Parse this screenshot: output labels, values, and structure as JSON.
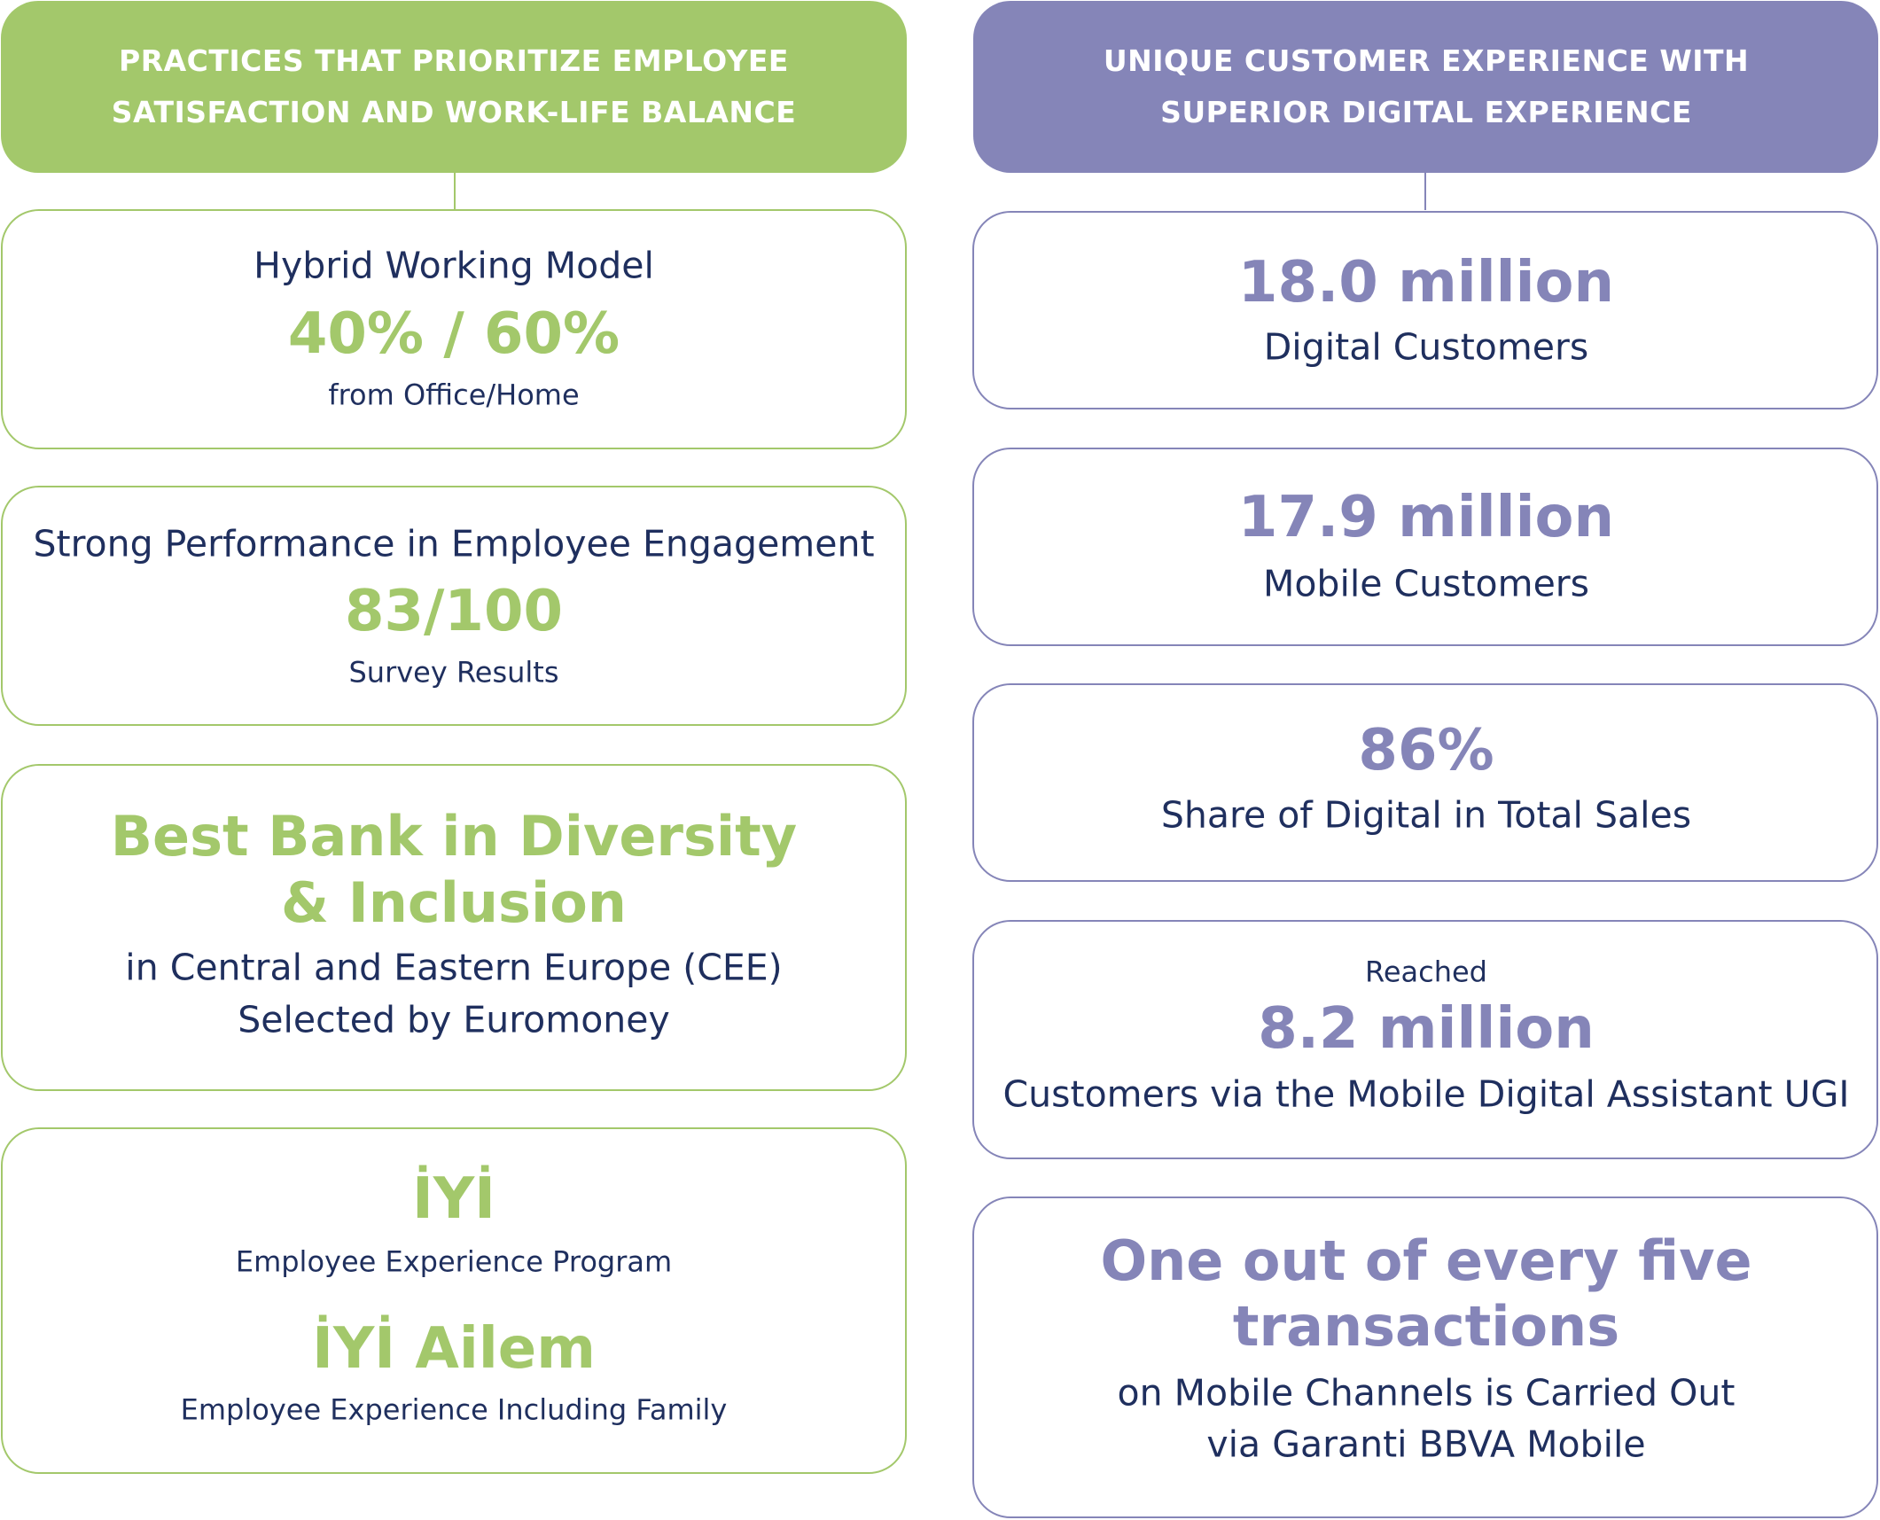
{
  "left": {
    "header": [
      "PRACTICES THAT PRIORITIZE EMPLOYEE",
      "SATISFACTION AND WORK-LIFE BALANCE"
    ],
    "cards": [
      [
        "Hybrid Working Model",
        "40% / 60%",
        "from Office/Home"
      ],
      [
        "Strong Performance in Employee Engagement",
        "83/100",
        "Survey Results"
      ],
      [
        "Best Bank in Diversity",
        "& Inclusion",
        "in Central and Eastern Europe (CEE)",
        "Selected by Euromoney"
      ],
      [
        "İYİ",
        "Employee Experience Program",
        "İYİ Ailem",
        "Employee Experience Including Family"
      ]
    ]
  },
  "right": {
    "header": [
      "UNIQUE CUSTOMER EXPERIENCE WITH",
      "SUPERIOR DIGITAL EXPERIENCE"
    ],
    "cards": [
      [
        "18.0 million",
        "Digital Customers"
      ],
      [
        "17.9 million",
        "Mobile Customers"
      ],
      [
        "86%",
        "Share of Digital in Total Sales"
      ],
      [
        "Reached",
        "8.2 million",
        "Customers via the Mobile Digital Assistant UGI"
      ],
      [
        "One out of every five",
        "transactions",
        "on Mobile Channels is Carried Out",
        "via Garanti BBVA Mobile"
      ]
    ]
  }
}
